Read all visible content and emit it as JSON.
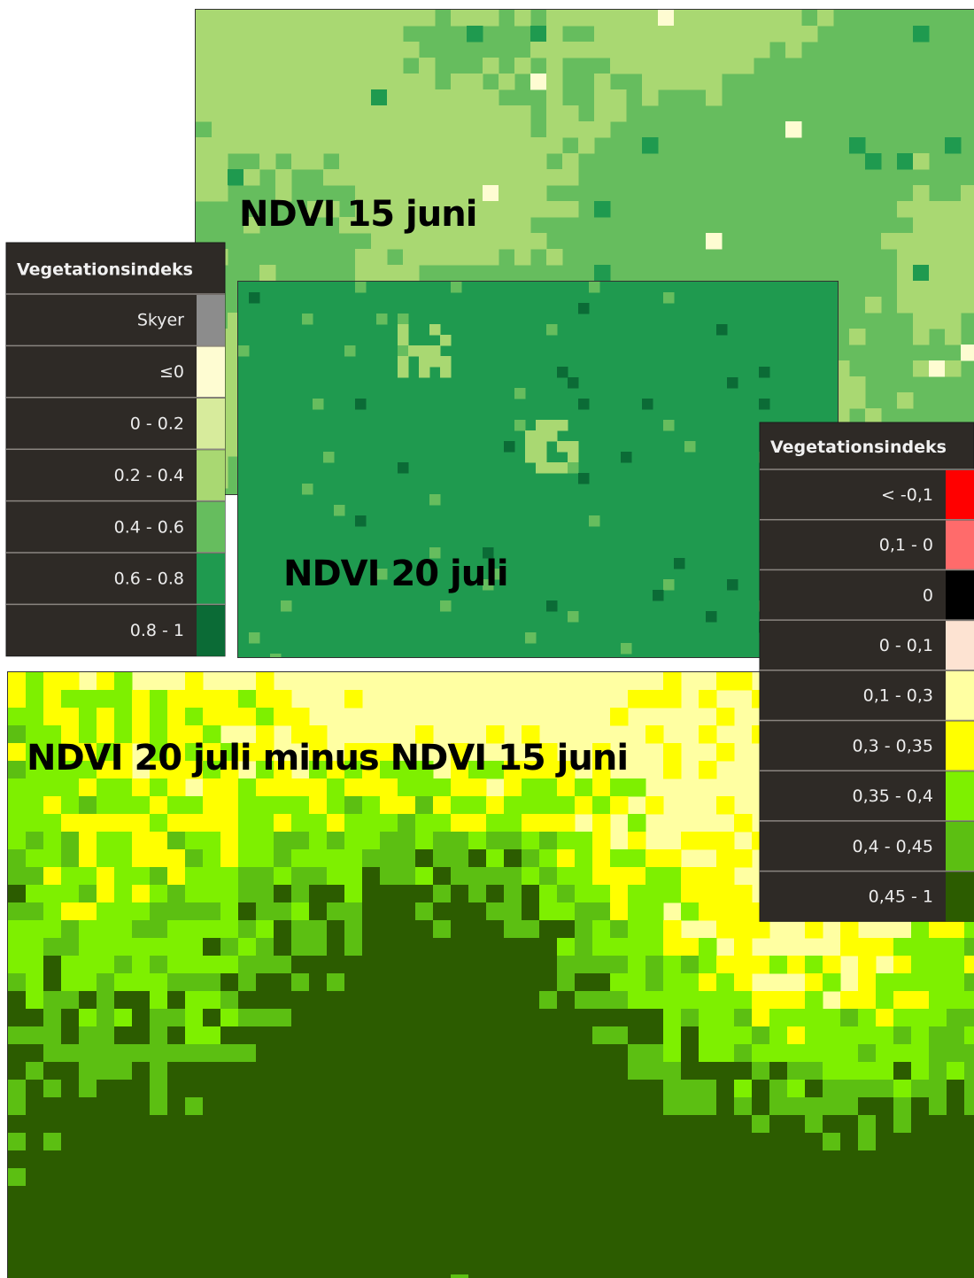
{
  "maps": [
    {
      "title": "NDVI 15 juni"
    },
    {
      "title": "NDVI 20 juli"
    },
    {
      "title": "NDVI 20 juli minus NDVI 15 juni"
    }
  ],
  "legend_ndvi": {
    "title": "Vegetationsindeks",
    "items": [
      {
        "label": "Skyer",
        "color": "#8c8c8c"
      },
      {
        "label": "≤0",
        "color": "#fefcd2"
      },
      {
        "label": "0 - 0.2",
        "color": "#d7eb9c"
      },
      {
        "label": "0.2 - 0.4",
        "color": "#a9d872"
      },
      {
        "label": "0.4 - 0.6",
        "color": "#66bd5e"
      },
      {
        "label": "0.6 - 0.8",
        "color": "#1f9a4f"
      },
      {
        "label": "0.8 - 1",
        "color": "#0b6b36"
      }
    ]
  },
  "legend_diff": {
    "title": "Vegetationsindeks",
    "items": [
      {
        "label": "< -0,1",
        "color": "#ff0000"
      },
      {
        "label": "0,1 - 0",
        "color": "#ff6b6b"
      },
      {
        "label": "0",
        "color": "#000000"
      },
      {
        "label": "0 - 0,1",
        "color": "#fde3d2"
      },
      {
        "label": "0,1 - 0,3",
        "color": "#ffffa2"
      },
      {
        "label": "0,3 - 0,35",
        "color": "#ffff00"
      },
      {
        "label": "0,35 - 0,4",
        "color": "#7ef000"
      },
      {
        "label": "0,4 - 0,45",
        "color": "#5cbf12"
      },
      {
        "label": "0,45 - 1",
        "color": "#2c5c00"
      }
    ]
  }
}
